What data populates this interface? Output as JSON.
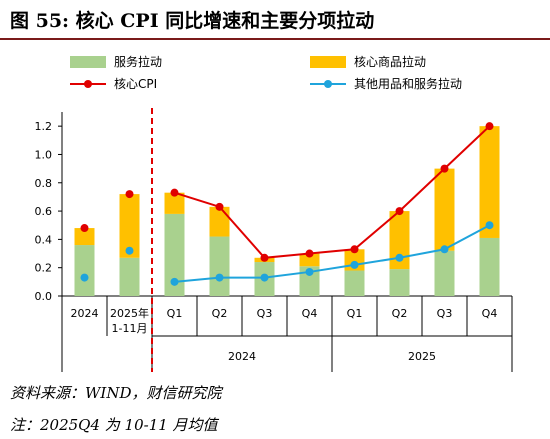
{
  "figure": {
    "title": "图 55:  核心 CPI 同比增速和主要分项拉动",
    "source": "资料来源：WIND，财信研究院",
    "note": "注：2025Q4 为 10-11 月均值"
  },
  "colors": {
    "services": "#a9d18e",
    "core_goods": "#ffc000",
    "core_cpi": "#e00000",
    "other_goods_services": "#1fa4dc",
    "divider": "#e00000",
    "title_rule": "#7a1a1a"
  },
  "chart_data": {
    "type": "bar",
    "stacked": true,
    "categories": [
      "2024",
      "2025年1-11月",
      "Q1",
      "Q2",
      "Q3",
      "Q4",
      "Q1",
      "Q2",
      "Q3",
      "Q4"
    ],
    "category_lines": [
      [
        "2024"
      ],
      [
        "2025年",
        "1-11月"
      ],
      [
        "Q1"
      ],
      [
        "Q2"
      ],
      [
        "Q3"
      ],
      [
        "Q4"
      ],
      [
        "Q1"
      ],
      [
        "Q2"
      ],
      [
        "Q3"
      ],
      [
        "Q4"
      ]
    ],
    "groups": [
      {
        "label": "2024",
        "from": 2,
        "to": 5
      },
      {
        "label": "2025",
        "from": 6,
        "to": 9
      }
    ],
    "series": [
      {
        "name": "服务拉动",
        "kind": "bar",
        "values": [
          0.36,
          0.27,
          0.58,
          0.42,
          0.24,
          0.21,
          0.18,
          0.19,
          0.32,
          0.41
        ]
      },
      {
        "name": "核心商品拉动",
        "kind": "bar",
        "values": [
          0.12,
          0.45,
          0.15,
          0.21,
          0.03,
          0.09,
          0.15,
          0.41,
          0.58,
          0.79
        ]
      },
      {
        "name": "核心CPI",
        "kind": "line",
        "values": [
          0.48,
          0.72,
          0.73,
          0.63,
          0.27,
          0.3,
          0.33,
          0.6,
          0.9,
          1.2
        ]
      },
      {
        "name": "其他用品和服务拉动",
        "kind": "line",
        "values": [
          0.13,
          0.32,
          0.1,
          0.13,
          0.13,
          0.17,
          0.22,
          0.27,
          0.33,
          0.5
        ]
      }
    ],
    "y_ticks": [
      "0.0",
      "0.2",
      "0.4",
      "0.6",
      "0.8",
      "1.0",
      "1.2"
    ],
    "ylim": [
      0,
      1.3
    ],
    "divider_after_index": 1,
    "legend_position": "top"
  }
}
